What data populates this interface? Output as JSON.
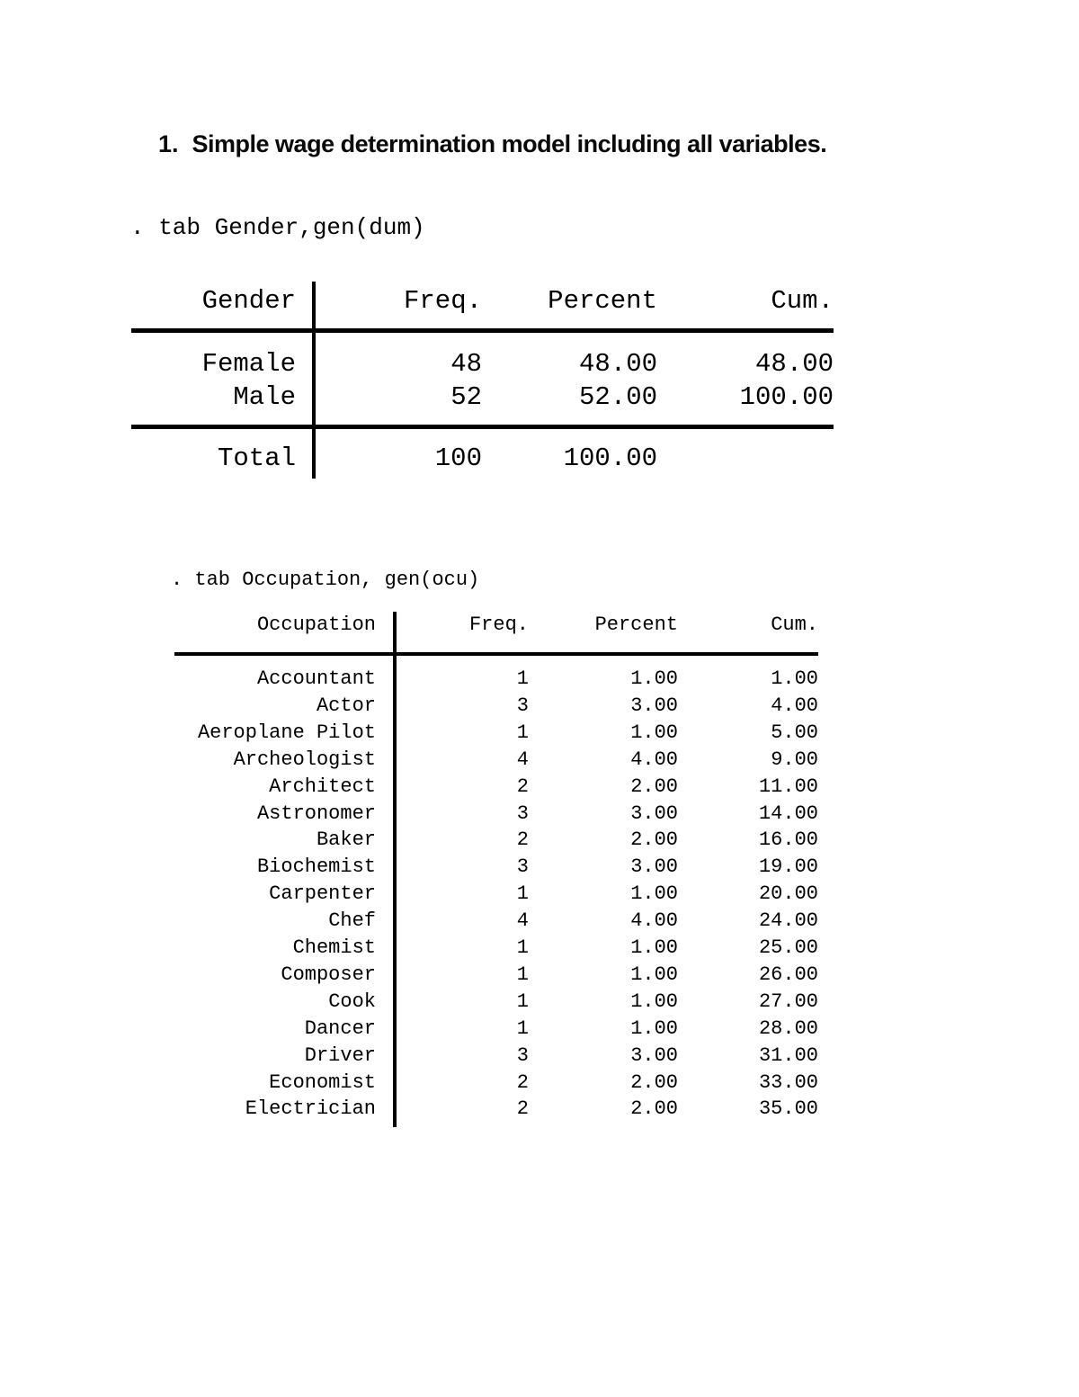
{
  "page_background": "#ffffff",
  "text_color": "#000000",
  "heading": {
    "number": "1.",
    "text": "Simple wage determination model including all variables."
  },
  "commands": [
    {
      "line": ". tab Gender,gen(dum)"
    },
    {
      "line": ". tab Occupation, gen(ocu)"
    }
  ],
  "gender_table": {
    "columns": [
      "Gender",
      "Freq.",
      "Percent",
      "Cum."
    ],
    "rows": [
      {
        "label": "Female",
        "freq": "48",
        "percent": "48.00",
        "cum": "48.00"
      },
      {
        "label": "Male",
        "freq": "52",
        "percent": "52.00",
        "cum": "100.00"
      }
    ],
    "total": {
      "label": "Total",
      "freq": "100",
      "percent": "100.00",
      "cum": ""
    }
  },
  "occupation_table": {
    "columns": [
      "Occupation",
      "Freq.",
      "Percent",
      "Cum."
    ],
    "rows": [
      {
        "label": "Accountant",
        "freq": "1",
        "percent": "1.00",
        "cum": "1.00"
      },
      {
        "label": "Actor",
        "freq": "3",
        "percent": "3.00",
        "cum": "4.00"
      },
      {
        "label": "Aeroplane Pilot",
        "freq": "1",
        "percent": "1.00",
        "cum": "5.00"
      },
      {
        "label": "Archeologist",
        "freq": "4",
        "percent": "4.00",
        "cum": "9.00"
      },
      {
        "label": "Architect",
        "freq": "2",
        "percent": "2.00",
        "cum": "11.00"
      },
      {
        "label": "Astronomer",
        "freq": "3",
        "percent": "3.00",
        "cum": "14.00"
      },
      {
        "label": "Baker",
        "freq": "2",
        "percent": "2.00",
        "cum": "16.00"
      },
      {
        "label": "Biochemist",
        "freq": "3",
        "percent": "3.00",
        "cum": "19.00"
      },
      {
        "label": "Carpenter",
        "freq": "1",
        "percent": "1.00",
        "cum": "20.00"
      },
      {
        "label": "Chef",
        "freq": "4",
        "percent": "4.00",
        "cum": "24.00"
      },
      {
        "label": "Chemist",
        "freq": "1",
        "percent": "1.00",
        "cum": "25.00"
      },
      {
        "label": "Composer",
        "freq": "1",
        "percent": "1.00",
        "cum": "26.00"
      },
      {
        "label": "Cook",
        "freq": "1",
        "percent": "1.00",
        "cum": "27.00"
      },
      {
        "label": "Dancer",
        "freq": "1",
        "percent": "1.00",
        "cum": "28.00"
      },
      {
        "label": "Driver",
        "freq": "3",
        "percent": "3.00",
        "cum": "31.00"
      },
      {
        "label": "Economist",
        "freq": "2",
        "percent": "2.00",
        "cum": "33.00"
      },
      {
        "label": "Electrician",
        "freq": "2",
        "percent": "2.00",
        "cum": "35.00"
      }
    ]
  }
}
